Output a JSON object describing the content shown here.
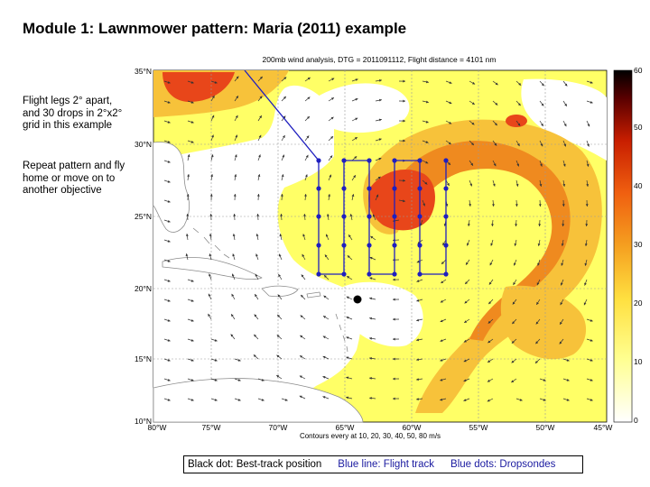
{
  "title": "Module 1:  Lawnmower pattern: Maria (2011) example",
  "notes": {
    "legs": "Flight legs 2° apart, and 30 drops in 2°x2° grid in this example",
    "repeat": "Repeat pattern and fly home or move on to another objective"
  },
  "map": {
    "header": "200mb wind analysis, DTG = 2011091112, Flight distance = 4101 nm",
    "footer": "Contours every at 10, 20, 30, 40, 50, 80 m/s",
    "lat_labels": [
      "35°N",
      "30°N",
      "25°N",
      "20°N",
      "15°N",
      "10°N"
    ],
    "lon_labels": [
      "80°W",
      "75°W",
      "70°W",
      "65°W",
      "60°W",
      "55°W",
      "50°W",
      "45°W"
    ],
    "colorbar_ticks": [
      "60",
      "50",
      "40",
      "30",
      "20",
      "10",
      "0"
    ],
    "colors": {
      "low": "#ffff66",
      "mid": "#f7c23a",
      "high": "#ef8a1f",
      "peak": "#e8461a",
      "flight_track": "#1f1fbf",
      "best_track": "#000000"
    }
  },
  "legend": {
    "black": "Black dot: Best-track position",
    "blue_line": "Blue line: Flight track",
    "blue_dots": "Blue dots: Dropsondes"
  }
}
